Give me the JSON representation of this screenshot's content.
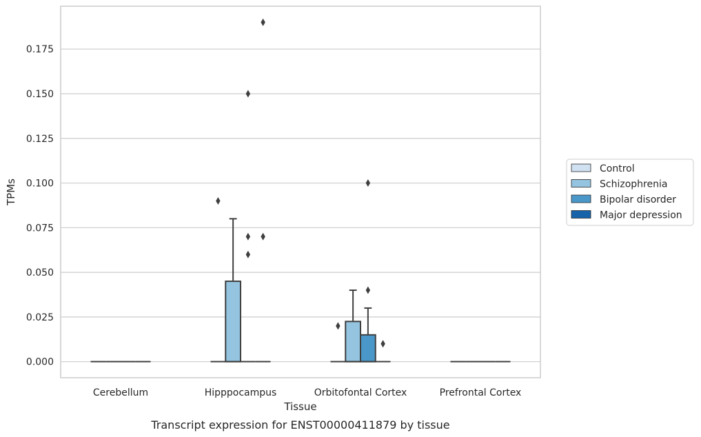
{
  "chart_data": {
    "type": "box",
    "title": "",
    "caption": "Transcript expression for ENST00000411879 by tissue",
    "xlabel": "Tissue",
    "ylabel": "TPMs",
    "ylim": [
      -0.009,
      0.199
    ],
    "yticks": [
      0.0,
      0.025,
      0.05,
      0.075,
      0.1,
      0.125,
      0.15,
      0.175
    ],
    "ytick_labels": [
      "0.000",
      "0.025",
      "0.050",
      "0.075",
      "0.100",
      "0.125",
      "0.150",
      "0.175"
    ],
    "grid": "horizontal",
    "legend_position": "right",
    "categories": [
      "Cerebellum",
      "Hipppocampus",
      "Orbitofontal Cortex",
      "Prefrontal Cortex"
    ],
    "series": [
      {
        "name": "Control",
        "color": "#d0e1f2",
        "boxes": [
          {
            "category": "Cerebellum",
            "q1": 0,
            "median": 0,
            "q3": 0,
            "whisker_low": 0,
            "whisker_high": 0,
            "outliers": []
          },
          {
            "category": "Hipppocampus",
            "q1": 0,
            "median": 0,
            "q3": 0,
            "whisker_low": 0,
            "whisker_high": 0,
            "outliers": [
              0.09
            ]
          },
          {
            "category": "Orbitofontal Cortex",
            "q1": 0,
            "median": 0,
            "q3": 0,
            "whisker_low": 0,
            "whisker_high": 0,
            "outliers": [
              0.02
            ]
          },
          {
            "category": "Prefrontal Cortex",
            "q1": 0,
            "median": 0,
            "q3": 0,
            "whisker_low": 0,
            "whisker_high": 0,
            "outliers": []
          }
        ]
      },
      {
        "name": "Schizophrenia",
        "color": "#94c4df",
        "boxes": [
          {
            "category": "Cerebellum",
            "q1": 0,
            "median": 0,
            "q3": 0,
            "whisker_low": 0,
            "whisker_high": 0,
            "outliers": []
          },
          {
            "category": "Hipppocampus",
            "q1": 0,
            "median": 0,
            "q3": 0.045,
            "whisker_low": 0,
            "whisker_high": 0.08,
            "outliers": []
          },
          {
            "category": "Orbitofontal Cortex",
            "q1": 0,
            "median": 0,
            "q3": 0.0225,
            "whisker_low": 0,
            "whisker_high": 0.04,
            "outliers": []
          },
          {
            "category": "Prefrontal Cortex",
            "q1": 0,
            "median": 0,
            "q3": 0,
            "whisker_low": 0,
            "whisker_high": 0,
            "outliers": []
          }
        ]
      },
      {
        "name": "Bipolar disorder",
        "color": "#4a98c9",
        "boxes": [
          {
            "category": "Cerebellum",
            "q1": 0,
            "median": 0,
            "q3": 0,
            "whisker_low": 0,
            "whisker_high": 0,
            "outliers": []
          },
          {
            "category": "Hipppocampus",
            "q1": 0,
            "median": 0,
            "q3": 0,
            "whisker_low": 0,
            "whisker_high": 0,
            "outliers": [
              0.06,
              0.07,
              0.15
            ]
          },
          {
            "category": "Orbitofontal Cortex",
            "q1": 0,
            "median": 0,
            "q3": 0.015,
            "whisker_low": 0,
            "whisker_high": 0.03,
            "outliers": [
              0.04,
              0.1
            ]
          },
          {
            "category": "Prefrontal Cortex",
            "q1": 0,
            "median": 0,
            "q3": 0,
            "whisker_low": 0,
            "whisker_high": 0,
            "outliers": []
          }
        ]
      },
      {
        "name": "Major depression",
        "color": "#1764ab",
        "boxes": [
          {
            "category": "Cerebellum",
            "q1": 0,
            "median": 0,
            "q3": 0,
            "whisker_low": 0,
            "whisker_high": 0,
            "outliers": []
          },
          {
            "category": "Hipppocampus",
            "q1": 0,
            "median": 0,
            "q3": 0,
            "whisker_low": 0,
            "whisker_high": 0,
            "outliers": [
              0.07,
              0.19
            ]
          },
          {
            "category": "Orbitofontal Cortex",
            "q1": 0,
            "median": 0,
            "q3": 0,
            "whisker_low": 0,
            "whisker_high": 0,
            "outliers": [
              0.01
            ]
          },
          {
            "category": "Prefrontal Cortex",
            "q1": 0,
            "median": 0,
            "q3": 0,
            "whisker_low": 0,
            "whisker_high": 0,
            "outliers": []
          }
        ]
      }
    ]
  }
}
